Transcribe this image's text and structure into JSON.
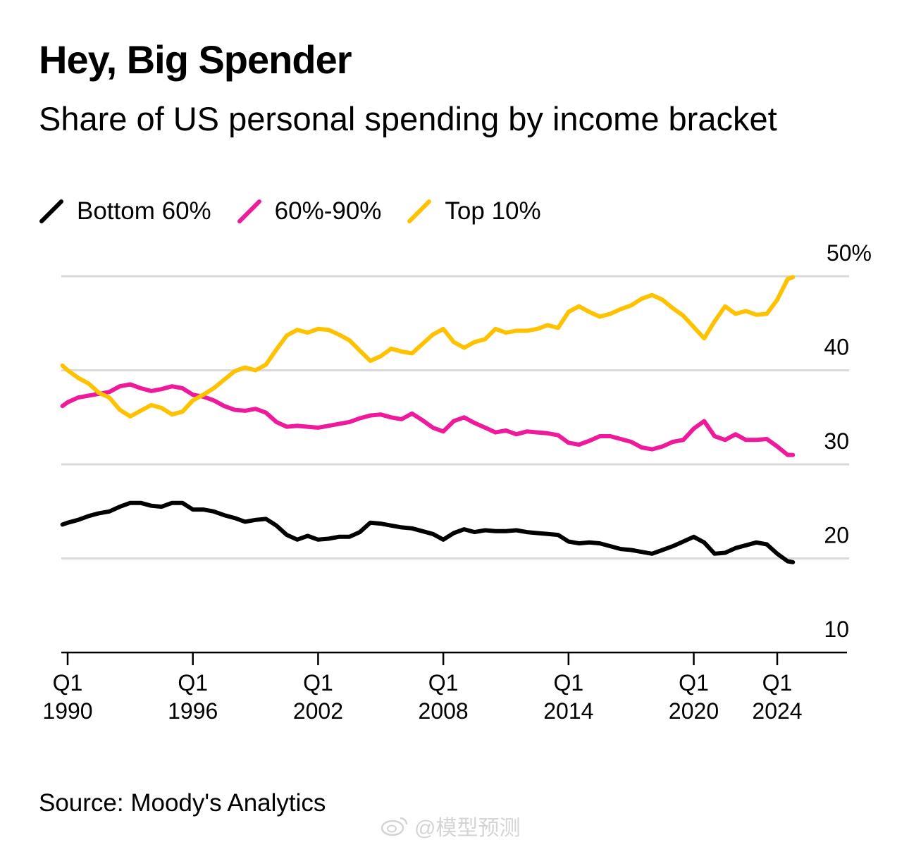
{
  "chart_data": {
    "type": "line",
    "title": "Hey, Big Spender",
    "subtitle": "Share of US personal spending by income bracket",
    "source": "Source: Moody's Analytics",
    "legend_position": "top-left",
    "grid": true,
    "ylim": [
      10,
      50
    ],
    "yticks": [
      {
        "value": 50,
        "label": "50%"
      },
      {
        "value": 40,
        "label": "40"
      },
      {
        "value": 30,
        "label": "30"
      },
      {
        "value": 20,
        "label": "20"
      },
      {
        "value": 10,
        "label": "10"
      }
    ],
    "xlim": [
      1989.75,
      2025.5
    ],
    "xticks": [
      {
        "value": 1990,
        "label_top": "Q1",
        "label_bottom": "1990"
      },
      {
        "value": 1996,
        "label_top": "Q1",
        "label_bottom": "1996"
      },
      {
        "value": 2002,
        "label_top": "Q1",
        "label_bottom": "2002"
      },
      {
        "value": 2008,
        "label_top": "Q1",
        "label_bottom": "2008"
      },
      {
        "value": 2014,
        "label_top": "Q1",
        "label_bottom": "2014"
      },
      {
        "value": 2020,
        "label_top": "Q1",
        "label_bottom": "2020"
      },
      {
        "value": 2024,
        "label_top": "Q1",
        "label_bottom": "2024"
      }
    ],
    "series": [
      {
        "name": "Bottom 60%",
        "color": "#000000",
        "points": [
          [
            1989.75,
            23.6
          ],
          [
            1990.0,
            23.8
          ],
          [
            1990.5,
            24.1
          ],
          [
            1991.0,
            24.5
          ],
          [
            1991.5,
            24.8
          ],
          [
            1992.0,
            25.0
          ],
          [
            1992.5,
            25.5
          ],
          [
            1993.0,
            25.9
          ],
          [
            1993.5,
            25.9
          ],
          [
            1994.0,
            25.6
          ],
          [
            1994.5,
            25.5
          ],
          [
            1995.0,
            25.9
          ],
          [
            1995.5,
            25.9
          ],
          [
            1996.0,
            25.2
          ],
          [
            1996.5,
            25.2
          ],
          [
            1997.0,
            25.0
          ],
          [
            1997.5,
            24.6
          ],
          [
            1998.0,
            24.3
          ],
          [
            1998.5,
            23.9
          ],
          [
            1999.0,
            24.1
          ],
          [
            1999.5,
            24.2
          ],
          [
            2000.0,
            23.5
          ],
          [
            2000.5,
            22.5
          ],
          [
            2001.0,
            22.0
          ],
          [
            2001.5,
            22.4
          ],
          [
            2002.0,
            22.0
          ],
          [
            2002.5,
            22.1
          ],
          [
            2003.0,
            22.3
          ],
          [
            2003.5,
            22.3
          ],
          [
            2004.0,
            22.8
          ],
          [
            2004.5,
            23.8
          ],
          [
            2005.0,
            23.7
          ],
          [
            2005.5,
            23.5
          ],
          [
            2006.0,
            23.3
          ],
          [
            2006.5,
            23.2
          ],
          [
            2007.0,
            22.9
          ],
          [
            2007.5,
            22.6
          ],
          [
            2008.0,
            22.0
          ],
          [
            2008.5,
            22.7
          ],
          [
            2009.0,
            23.1
          ],
          [
            2009.5,
            22.8
          ],
          [
            2010.0,
            23.0
          ],
          [
            2010.5,
            22.9
          ],
          [
            2011.0,
            22.9
          ],
          [
            2011.5,
            23.0
          ],
          [
            2012.0,
            22.8
          ],
          [
            2012.5,
            22.7
          ],
          [
            2013.0,
            22.6
          ],
          [
            2013.5,
            22.5
          ],
          [
            2014.0,
            21.8
          ],
          [
            2014.5,
            21.6
          ],
          [
            2015.0,
            21.7
          ],
          [
            2015.5,
            21.6
          ],
          [
            2016.0,
            21.3
          ],
          [
            2016.5,
            21.0
          ],
          [
            2017.0,
            20.9
          ],
          [
            2017.5,
            20.7
          ],
          [
            2018.0,
            20.5
          ],
          [
            2018.5,
            20.9
          ],
          [
            2019.0,
            21.3
          ],
          [
            2019.5,
            21.8
          ],
          [
            2020.0,
            22.3
          ],
          [
            2020.5,
            21.7
          ],
          [
            2021.0,
            20.5
          ],
          [
            2021.5,
            20.6
          ],
          [
            2022.0,
            21.1
          ],
          [
            2022.5,
            21.4
          ],
          [
            2023.0,
            21.7
          ],
          [
            2023.5,
            21.5
          ],
          [
            2024.0,
            20.5
          ],
          [
            2024.5,
            19.7
          ],
          [
            2024.75,
            19.6
          ]
        ]
      },
      {
        "name": "60%-90%",
        "color": "#ee1a9b",
        "points": [
          [
            1989.75,
            36.2
          ],
          [
            1990.0,
            36.6
          ],
          [
            1990.5,
            37.1
          ],
          [
            1991.0,
            37.3
          ],
          [
            1991.5,
            37.5
          ],
          [
            1992.0,
            37.7
          ],
          [
            1992.5,
            38.3
          ],
          [
            1993.0,
            38.5
          ],
          [
            1993.5,
            38.1
          ],
          [
            1994.0,
            37.8
          ],
          [
            1994.5,
            38.0
          ],
          [
            1995.0,
            38.3
          ],
          [
            1995.5,
            38.1
          ],
          [
            1996.0,
            37.4
          ],
          [
            1996.5,
            37.2
          ],
          [
            1997.0,
            36.8
          ],
          [
            1997.5,
            36.2
          ],
          [
            1998.0,
            35.8
          ],
          [
            1998.5,
            35.7
          ],
          [
            1999.0,
            35.9
          ],
          [
            1999.5,
            35.5
          ],
          [
            2000.0,
            34.5
          ],
          [
            2000.5,
            34.0
          ],
          [
            2001.0,
            34.1
          ],
          [
            2001.5,
            34.0
          ],
          [
            2002.0,
            33.9
          ],
          [
            2002.5,
            34.1
          ],
          [
            2003.0,
            34.3
          ],
          [
            2003.5,
            34.5
          ],
          [
            2004.0,
            34.9
          ],
          [
            2004.5,
            35.2
          ],
          [
            2005.0,
            35.3
          ],
          [
            2005.5,
            35.0
          ],
          [
            2006.0,
            34.8
          ],
          [
            2006.5,
            35.4
          ],
          [
            2007.0,
            34.7
          ],
          [
            2007.5,
            33.9
          ],
          [
            2008.0,
            33.5
          ],
          [
            2008.5,
            34.6
          ],
          [
            2009.0,
            35.0
          ],
          [
            2009.5,
            34.4
          ],
          [
            2010.0,
            33.9
          ],
          [
            2010.5,
            33.4
          ],
          [
            2011.0,
            33.6
          ],
          [
            2011.5,
            33.2
          ],
          [
            2012.0,
            33.5
          ],
          [
            2012.5,
            33.4
          ],
          [
            2013.0,
            33.3
          ],
          [
            2013.5,
            33.1
          ],
          [
            2014.0,
            32.3
          ],
          [
            2014.5,
            32.1
          ],
          [
            2015.0,
            32.5
          ],
          [
            2015.5,
            33.0
          ],
          [
            2016.0,
            33.0
          ],
          [
            2016.5,
            32.7
          ],
          [
            2017.0,
            32.4
          ],
          [
            2017.5,
            31.8
          ],
          [
            2018.0,
            31.6
          ],
          [
            2018.5,
            31.9
          ],
          [
            2019.0,
            32.4
          ],
          [
            2019.5,
            32.6
          ],
          [
            2020.0,
            33.8
          ],
          [
            2020.5,
            34.6
          ],
          [
            2021.0,
            33.0
          ],
          [
            2021.5,
            32.6
          ],
          [
            2022.0,
            33.2
          ],
          [
            2022.5,
            32.6
          ],
          [
            2023.0,
            32.6
          ],
          [
            2023.5,
            32.7
          ],
          [
            2024.0,
            31.9
          ],
          [
            2024.5,
            31.0
          ],
          [
            2024.75,
            31.0
          ]
        ]
      },
      {
        "name": "Top 10%",
        "color": "#ffc200",
        "points": [
          [
            1989.75,
            40.5
          ],
          [
            1990.0,
            40.0
          ],
          [
            1990.5,
            39.2
          ],
          [
            1991.0,
            38.6
          ],
          [
            1991.5,
            37.6
          ],
          [
            1992.0,
            37.1
          ],
          [
            1992.5,
            35.8
          ],
          [
            1993.0,
            35.1
          ],
          [
            1993.5,
            35.7
          ],
          [
            1994.0,
            36.3
          ],
          [
            1994.5,
            36.0
          ],
          [
            1995.0,
            35.3
          ],
          [
            1995.5,
            35.6
          ],
          [
            1996.0,
            36.8
          ],
          [
            1996.5,
            37.4
          ],
          [
            1997.0,
            38.1
          ],
          [
            1997.5,
            39.0
          ],
          [
            1998.0,
            39.9
          ],
          [
            1998.5,
            40.3
          ],
          [
            1999.0,
            40.0
          ],
          [
            1999.5,
            40.6
          ],
          [
            2000.0,
            42.2
          ],
          [
            2000.5,
            43.7
          ],
          [
            2001.0,
            44.3
          ],
          [
            2001.5,
            44.0
          ],
          [
            2002.0,
            44.4
          ],
          [
            2002.5,
            44.3
          ],
          [
            2003.0,
            43.8
          ],
          [
            2003.5,
            43.2
          ],
          [
            2004.0,
            42.1
          ],
          [
            2004.5,
            41.0
          ],
          [
            2005.0,
            41.5
          ],
          [
            2005.5,
            42.3
          ],
          [
            2006.0,
            42.0
          ],
          [
            2006.5,
            41.8
          ],
          [
            2007.0,
            42.8
          ],
          [
            2007.5,
            43.8
          ],
          [
            2008.0,
            44.4
          ],
          [
            2008.5,
            43.0
          ],
          [
            2009.0,
            42.4
          ],
          [
            2009.5,
            43.0
          ],
          [
            2010.0,
            43.3
          ],
          [
            2010.5,
            44.4
          ],
          [
            2011.0,
            44.0
          ],
          [
            2011.5,
            44.2
          ],
          [
            2012.0,
            44.2
          ],
          [
            2012.5,
            44.4
          ],
          [
            2013.0,
            44.8
          ],
          [
            2013.5,
            44.5
          ],
          [
            2014.0,
            46.2
          ],
          [
            2014.5,
            46.8
          ],
          [
            2015.0,
            46.2
          ],
          [
            2015.5,
            45.7
          ],
          [
            2016.0,
            46.0
          ],
          [
            2016.5,
            46.5
          ],
          [
            2017.0,
            46.9
          ],
          [
            2017.5,
            47.6
          ],
          [
            2018.0,
            48.0
          ],
          [
            2018.5,
            47.5
          ],
          [
            2019.0,
            46.6
          ],
          [
            2019.5,
            45.8
          ],
          [
            2020.0,
            44.6
          ],
          [
            2020.5,
            43.4
          ],
          [
            2021.0,
            45.2
          ],
          [
            2021.5,
            46.8
          ],
          [
            2022.0,
            46.0
          ],
          [
            2022.5,
            46.3
          ],
          [
            2023.0,
            45.9
          ],
          [
            2023.5,
            46.0
          ],
          [
            2024.0,
            47.5
          ],
          [
            2024.5,
            49.7
          ],
          [
            2024.75,
            49.9
          ]
        ]
      }
    ]
  },
  "watermark": "@模型预测"
}
